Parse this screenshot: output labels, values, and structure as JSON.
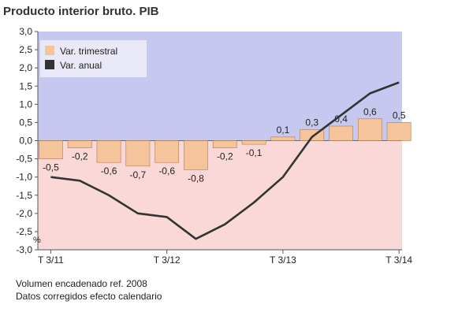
{
  "title": "Producto interior bruto. PIB",
  "notes": [
    "Volumen encadenado ref. 2008",
    "Datos corregidos efecto calendario"
  ],
  "colors": {
    "bg_positive": "#c7c8f0",
    "bg_negative": "#fbd8d8",
    "bar_fill": "#f6c49a",
    "bar_stroke": "#b07c52",
    "line": "#333333",
    "legend_bg": "#e8e8f6"
  },
  "chart_data": {
    "type": "bar",
    "title": "Producto interior bruto. PIB",
    "ylabel": "%",
    "ylim": [
      -3.0,
      3.0
    ],
    "yticks": [
      3.0,
      2.5,
      2.0,
      1.5,
      1.0,
      0.5,
      0.0,
      -0.5,
      -1.0,
      -1.5,
      -2.0,
      -2.5,
      -3.0
    ],
    "ytick_labels": [
      "3,0",
      "2,5",
      "2,0",
      "1,5",
      "1,0",
      "0,5",
      "0,0",
      "-0,5",
      "-1,0",
      "-1,5",
      "-2,0",
      "-2,5",
      "-3,0"
    ],
    "x_tick_labels": [
      {
        "label": "T 3/11",
        "index": 0
      },
      {
        "label": "T 3/12",
        "index": 4
      },
      {
        "label": "T 3/13",
        "index": 8
      },
      {
        "label": "T 3/14",
        "index": 12
      }
    ],
    "legend_placement": "top-left",
    "series": [
      {
        "name": "Var. trimestral",
        "type": "bar",
        "values": [
          -0.5,
          -0.2,
          -0.6,
          -0.7,
          -0.6,
          -0.8,
          -0.2,
          -0.1,
          0.1,
          0.3,
          0.4,
          0.6,
          0.5
        ],
        "labels": [
          "-0,5",
          "-0,2",
          "-0,6",
          "-0,7",
          "-0,6",
          "-0,8",
          "-0,2",
          "-0,1",
          "0,1",
          "0,3",
          "0,4",
          "0,6",
          "0,5"
        ]
      },
      {
        "name": "Var. anual",
        "type": "line",
        "values": [
          -1.0,
          -1.1,
          -1.5,
          -2.0,
          -2.1,
          -2.7,
          -2.3,
          -1.7,
          -1.0,
          0.1,
          0.7,
          1.3,
          1.6
        ]
      }
    ]
  }
}
